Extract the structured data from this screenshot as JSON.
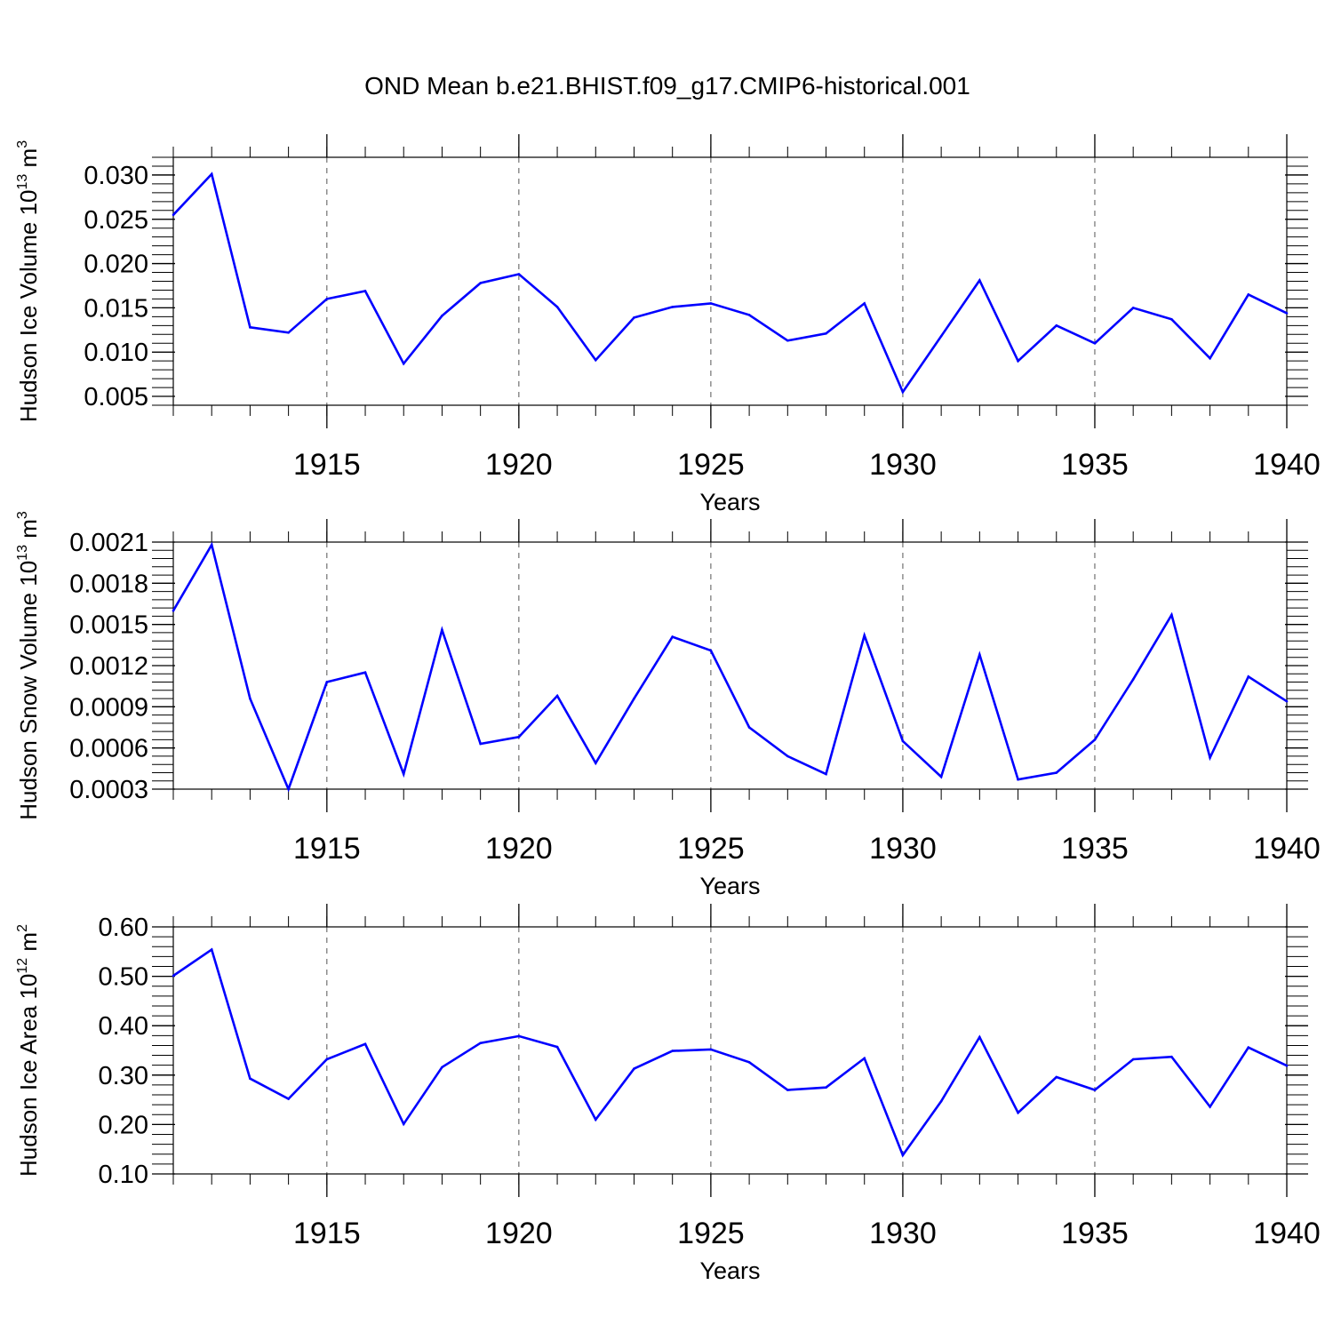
{
  "title": "OND Mean b.e21.BHIST.f09_g17.CMIP6-historical.001",
  "chart_data": [
    {
      "type": "line",
      "ylabel": {
        "text": "Hudson Ice Volume 10",
        "exponent": "13",
        "unit": " m",
        "unit_exponent": "3"
      },
      "xlabel": "Years",
      "xlim": [
        1911,
        1940
      ],
      "ylim": [
        0.004,
        0.032
      ],
      "yticks": [
        "0.005",
        "0.010",
        "0.015",
        "0.020",
        "0.025",
        "0.030"
      ],
      "xticks": [
        "1915",
        "1920",
        "1925",
        "1930",
        "1935",
        "1940"
      ],
      "grid": "x-dashed",
      "line_color": "#0000ff",
      "x": [
        1911,
        1912,
        1913,
        1914,
        1915,
        1916,
        1917,
        1918,
        1919,
        1920,
        1921,
        1922,
        1923,
        1924,
        1925,
        1926,
        1927,
        1928,
        1929,
        1930,
        1931,
        1932,
        1933,
        1934,
        1935,
        1936,
        1937,
        1938,
        1939,
        1940
      ],
      "values": [
        0.0255,
        0.0301,
        0.0128,
        0.0122,
        0.016,
        0.0169,
        0.0087,
        0.0141,
        0.0178,
        0.0188,
        0.0151,
        0.0091,
        0.0139,
        0.0151,
        0.0155,
        0.0142,
        0.0113,
        0.0121,
        0.0155,
        0.0055,
        0.0118,
        0.0181,
        0.009,
        0.013,
        0.011,
        0.015,
        0.0137,
        0.0093,
        0.0165,
        0.0144
      ]
    },
    {
      "type": "line",
      "ylabel": {
        "text": "Hudson Snow Volume 10",
        "exponent": "13",
        "unit": " m",
        "unit_exponent": "3"
      },
      "xlabel": "Years",
      "xlim": [
        1911,
        1940
      ],
      "ylim": [
        0.0003,
        0.0021
      ],
      "yticks": [
        "0.0003",
        "0.0006",
        "0.0009",
        "0.0012",
        "0.0015",
        "0.0018",
        "0.0021"
      ],
      "xticks": [
        "1915",
        "1920",
        "1925",
        "1930",
        "1935",
        "1940"
      ],
      "grid": "x-dashed",
      "line_color": "#0000ff",
      "x": [
        1911,
        1912,
        1913,
        1914,
        1915,
        1916,
        1917,
        1918,
        1919,
        1920,
        1921,
        1922,
        1923,
        1924,
        1925,
        1926,
        1927,
        1928,
        1929,
        1930,
        1931,
        1932,
        1933,
        1934,
        1935,
        1936,
        1937,
        1938,
        1939,
        1940
      ],
      "values": [
        0.0016,
        0.00208,
        0.00096,
        0.0003,
        0.00108,
        0.00115,
        0.00041,
        0.00146,
        0.00063,
        0.00068,
        0.00098,
        0.00049,
        0.00096,
        0.00141,
        0.00131,
        0.00075,
        0.00054,
        0.00041,
        0.00142,
        0.00065,
        0.00039,
        0.00128,
        0.00037,
        0.00042,
        0.00066,
        0.0011,
        0.00157,
        0.00053,
        0.00112,
        0.00094
      ]
    },
    {
      "type": "line",
      "ylabel": {
        "text": "Hudson Ice Area 10",
        "exponent": "12",
        "unit": " m",
        "unit_exponent": "2"
      },
      "xlabel": "Years",
      "xlim": [
        1911,
        1940
      ],
      "ylim": [
        0.1,
        0.6
      ],
      "yticks": [
        "0.10",
        "0.20",
        "0.30",
        "0.40",
        "0.50",
        "0.60"
      ],
      "xticks": [
        "1915",
        "1920",
        "1925",
        "1930",
        "1935",
        "1940"
      ],
      "grid": "x-dashed",
      "line_color": "#0000ff",
      "x": [
        1911,
        1912,
        1913,
        1914,
        1915,
        1916,
        1917,
        1918,
        1919,
        1920,
        1921,
        1922,
        1923,
        1924,
        1925,
        1926,
        1927,
        1928,
        1929,
        1930,
        1931,
        1932,
        1933,
        1934,
        1935,
        1936,
        1937,
        1938,
        1939,
        1940
      ],
      "values": [
        0.501,
        0.554,
        0.293,
        0.252,
        0.332,
        0.363,
        0.201,
        0.316,
        0.365,
        0.379,
        0.357,
        0.21,
        0.313,
        0.349,
        0.352,
        0.326,
        0.27,
        0.275,
        0.334,
        0.138,
        0.247,
        0.377,
        0.224,
        0.296,
        0.27,
        0.332,
        0.337,
        0.236,
        0.356,
        0.319
      ]
    }
  ]
}
